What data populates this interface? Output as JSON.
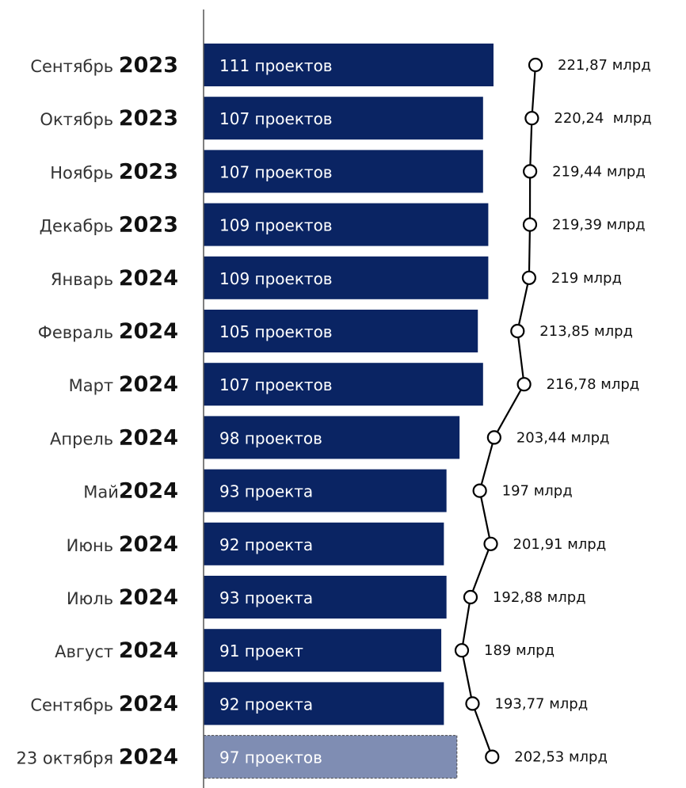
{
  "colors": {
    "bar": "#0a2463",
    "bar_forecast": "#7f8db3",
    "bar_forecast_border": "#4a4a4a",
    "line": "#000000",
    "axis": "#555555"
  },
  "chart_data": {
    "type": "bar",
    "orientation": "horizontal",
    "categories": [
      {
        "month": "Сентябрь",
        "year": "2023"
      },
      {
        "month": "Октябрь",
        "year": "2023"
      },
      {
        "month": "Ноябрь",
        "year": "2023"
      },
      {
        "month": "Декабрь",
        "year": "2023"
      },
      {
        "month": "Январь",
        "year": "2024"
      },
      {
        "month": "Февраль",
        "year": "2024"
      },
      {
        "month": "Март",
        "year": "2024"
      },
      {
        "month": "Апрель",
        "year": "2024"
      },
      {
        "month": "Май",
        "year": "2024"
      },
      {
        "month": "Июнь",
        "year": "2024"
      },
      {
        "month": "Июль",
        "year": "2024"
      },
      {
        "month": "Август",
        "year": "2024"
      },
      {
        "month": "Сентябрь",
        "year": "2024"
      },
      {
        "month": "23 октября",
        "year": "2024"
      }
    ],
    "series": [
      {
        "type": "bar",
        "values": [
          111,
          107,
          107,
          109,
          109,
          105,
          107,
          98,
          93,
          92,
          93,
          91,
          92,
          97
        ],
        "labels": [
          "111 проектов",
          "107 проектов",
          "107 проектов",
          "109 проектов",
          "109 проектов",
          "105 проектов",
          "107 проектов",
          "98 проектов",
          "93 проекта",
          "92 проекта",
          "93 проекта",
          "91 проект",
          "92 проекта",
          "97 проектов"
        ],
        "highlighted_last": true
      },
      {
        "type": "line",
        "values": [
          221.87,
          220.24,
          219.44,
          219.39,
          219,
          213.85,
          216.78,
          203.44,
          197,
          201.91,
          192.88,
          189,
          193.77,
          202.53
        ],
        "labels": [
          "221,87 млрд",
          "220,24  млрд",
          "219,44 млрд",
          "219,39 млрд",
          "219 млрд",
          "213,85 млрд",
          "216,78 млрд",
          "203,44 млрд",
          "197 млрд",
          "201,91 млрд",
          "192,88 млрд",
          "189 млрд",
          "193,77 млрд",
          "202,53 млрд"
        ]
      }
    ],
    "xlim": [
      0,
      111
    ]
  }
}
